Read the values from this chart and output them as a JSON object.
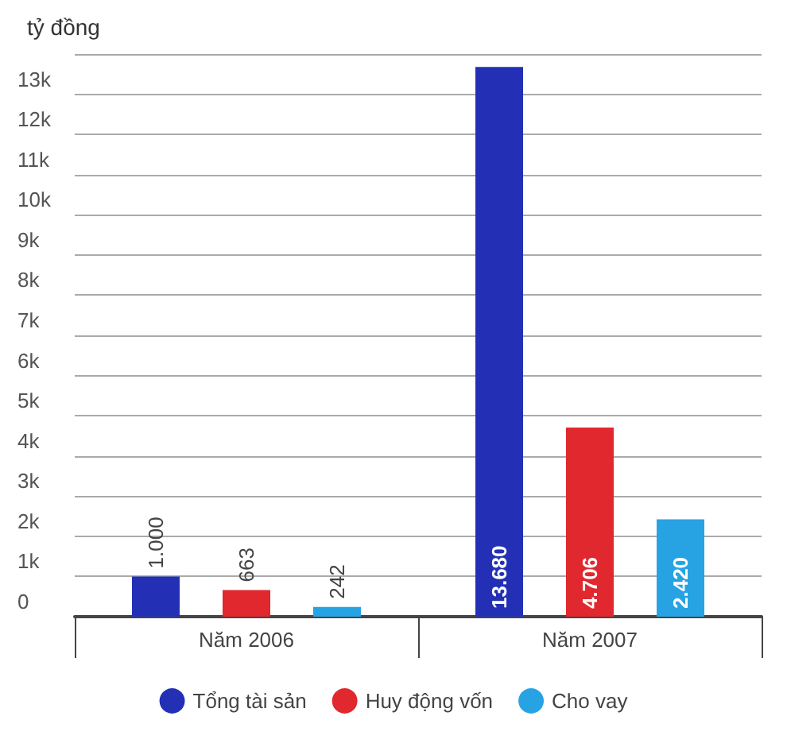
{
  "chart_data": {
    "type": "bar",
    "ylabel": "tỷ đồng",
    "categories": [
      "Năm 2006",
      "Năm 2007"
    ],
    "series": [
      {
        "name": "Tổng tài sản",
        "color": "#2330b5",
        "values": [
          1000,
          13680
        ],
        "value_labels": [
          "1.000",
          "13.680"
        ]
      },
      {
        "name": "Huy động vốn",
        "color": "#e0282e",
        "values": [
          663,
          4706
        ],
        "value_labels": [
          "663",
          "4.706"
        ]
      },
      {
        "name": "Cho vay",
        "color": "#27a3e3",
        "values": [
          242,
          2420
        ],
        "value_labels": [
          "242",
          "2.420"
        ]
      }
    ],
    "ylim": [
      0,
      14000
    ],
    "yticks": [
      {
        "value": 0,
        "label": "0"
      },
      {
        "value": 1000,
        "label": "1k"
      },
      {
        "value": 2000,
        "label": "2k"
      },
      {
        "value": 3000,
        "label": "3k"
      },
      {
        "value": 4000,
        "label": "4k"
      },
      {
        "value": 5000,
        "label": "5k"
      },
      {
        "value": 6000,
        "label": "6k"
      },
      {
        "value": 7000,
        "label": "7k"
      },
      {
        "value": 8000,
        "label": "8k"
      },
      {
        "value": 9000,
        "label": "9k"
      },
      {
        "value": 10000,
        "label": "10k"
      },
      {
        "value": 11000,
        "label": "11k"
      },
      {
        "value": 12000,
        "label": "12k"
      },
      {
        "value": 13000,
        "label": "13k"
      },
      {
        "value": 14000,
        "label": null
      }
    ],
    "grid": "y",
    "legend": "bottom"
  }
}
